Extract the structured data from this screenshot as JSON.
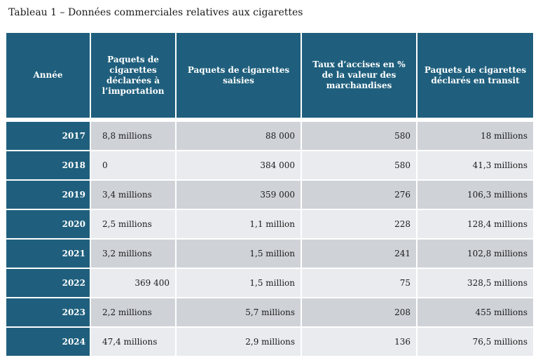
{
  "caption": "Tableau 1 – Données commerciales relatives aux cigarettes",
  "headers": [
    "Année",
    "Paquets de cigarettes déclarées à l’importation",
    "Paquets de cigarettes saisies",
    "Taux d’accises en % de la valeur des marchandises",
    "Paquets de cigarettes déclarés en transit"
  ],
  "rows": [
    {
      "year": "2017",
      "imports": "8,8 millions",
      "seized": "88 000",
      "rate": "580",
      "transit": "18 millions"
    },
    {
      "year": "2018",
      "imports": "0",
      "seized": "384 000",
      "rate": "580",
      "transit": "41,3 millions"
    },
    {
      "year": "2019",
      "imports": "3,4 millions",
      "seized": "359 000",
      "rate": "276",
      "transit": "106,3 millions"
    },
    {
      "year": "2020",
      "imports": "2,5 millions",
      "seized": "1,1 million",
      "rate": "228",
      "transit": "128,4 millions"
    },
    {
      "year": "2021",
      "imports": "3,2 millions",
      "seized": "1,5 million",
      "rate": "241",
      "transit": "102,8 millions"
    },
    {
      "year": "2022",
      "imports": "369 400",
      "seized": "1,5 million",
      "rate": "75",
      "transit": "328,5 millions"
    },
    {
      "year": "2023",
      "imports": "2,2 millions",
      "seized": "5,7 millions",
      "rate": "208",
      "transit": "455 millions"
    },
    {
      "year": "2024",
      "imports": "47,4 millions",
      "seized": "2,9 millions",
      "rate": "136",
      "transit": "76,5 millions"
    }
  ],
  "colors": {
    "header_bg": "#1f5f7d",
    "row_dark": "#cfd3d8",
    "row_light": "#e9ebee"
  }
}
